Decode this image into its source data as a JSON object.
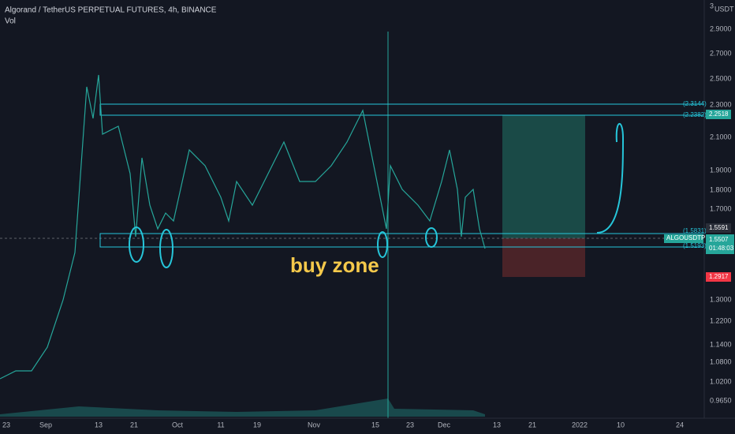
{
  "header": {
    "symbol": "Algorand / TetherUS PERPETUAL FUTURES, 4h, BINANCE",
    "indicator": "Vol"
  },
  "price_axis": {
    "currency": "USDT",
    "labels": [
      "3",
      "2.9000",
      "2.7000",
      "2.5000",
      "2.3000",
      "2.1000",
      "1.9000",
      "1.8000",
      "1.7000",
      "1.3000",
      "1.2200",
      "1.1400",
      "1.0800",
      "1.0200",
      "0.9650"
    ]
  },
  "price_tags": {
    "target": "2.2518",
    "last": "1.5591",
    "current": "1.5507",
    "countdown": "01:48:03",
    "stop": "1.2917",
    "symbol_tag": "ALGOUSDTPERP"
  },
  "line_labels": [
    "(2.3144)",
    "(2.2382)",
    "(1.5831)",
    "(1.5193)"
  ],
  "time_axis": [
    "23",
    "Sep",
    "13",
    "21",
    "Oct",
    "11",
    "19",
    "Nov",
    "15",
    "23",
    "Dec",
    "13",
    "21",
    "2022",
    "10",
    "24"
  ],
  "annotation": "buy zone"
}
